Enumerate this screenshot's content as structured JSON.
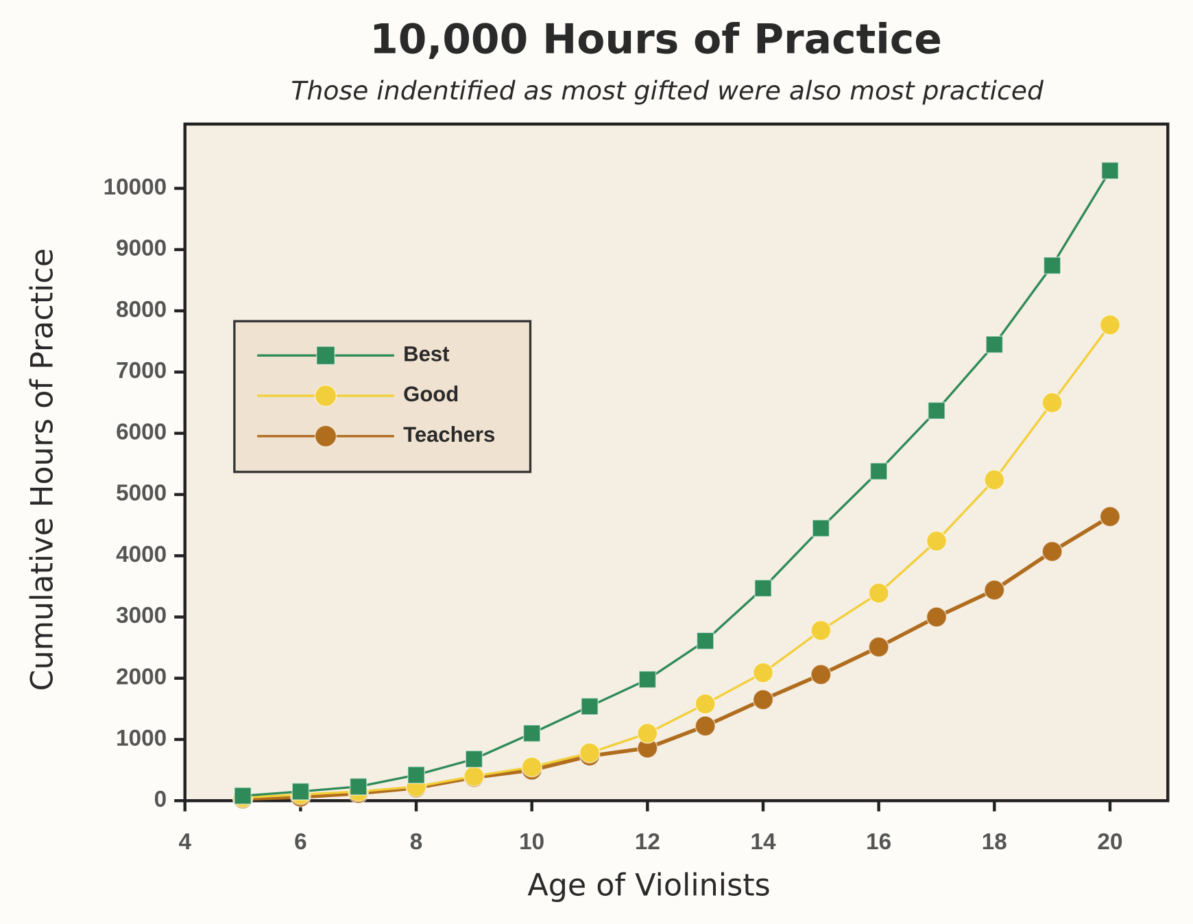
{
  "chart_data": {
    "type": "line",
    "title": "10,000 Hours of Practice",
    "subtitle": "Those indentified as most gifted were also most practiced",
    "x_label": "Age of Violinists",
    "y_label": "Cumulative Hours of Practice",
    "x": [
      5,
      6,
      7,
      8,
      9,
      10,
      11,
      12,
      13,
      14,
      15,
      16,
      17,
      18,
      19,
      20
    ],
    "series": [
      {
        "name": "Best",
        "color": "#2e8a58",
        "marker": "square",
        "values": [
          80,
          150,
          230,
          420,
          680,
          1100,
          1540,
          1980,
          2610,
          3470,
          4450,
          5380,
          6370,
          7450,
          8740,
          10290
        ]
      },
      {
        "name": "Good",
        "color": "#f2cf3a",
        "marker": "circle",
        "values": [
          50,
          100,
          150,
          230,
          400,
          550,
          780,
          1100,
          1580,
          2090,
          2780,
          3390,
          4240,
          5240,
          6500,
          7770
        ]
      },
      {
        "name": "Teachers",
        "color": "#b06d1e",
        "marker": "circle",
        "values": [
          30,
          60,
          120,
          210,
          380,
          500,
          730,
          860,
          1220,
          1650,
          2060,
          2510,
          3000,
          3440,
          4070,
          4640
        ]
      }
    ],
    "xlim": [
      4,
      21
    ],
    "ylim": [
      0,
      11050
    ],
    "xticks": [
      4,
      6,
      8,
      10,
      12,
      14,
      16,
      18,
      20
    ],
    "yticks": [
      0,
      1000,
      2000,
      3000,
      4000,
      5000,
      6000,
      7000,
      8000,
      9000,
      10000
    ],
    "legend": "upper left"
  }
}
